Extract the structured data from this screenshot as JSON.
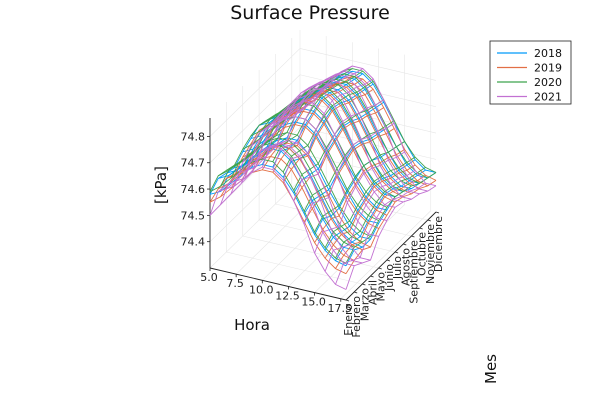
{
  "chart_data": {
    "type": "line",
    "title": "Surface Pressure",
    "xlabel": "Hora",
    "ylabel": "Mes",
    "zlabel": "[kPa]",
    "x_ticks": [
      "5.0",
      "7.5",
      "10.0",
      "12.5",
      "15.0",
      "17.5"
    ],
    "xlim": [
      5,
      18
    ],
    "y_categories": [
      "Enero",
      "Febrero",
      "Marzo",
      "Abril",
      "Mayo",
      "Junio",
      "Julio",
      "Agosto",
      "Septiembre",
      "Octubre",
      "Noviembre",
      "Diciembre"
    ],
    "z_ticks": [
      "74.4",
      "74.5",
      "74.6",
      "74.7",
      "74.8"
    ],
    "zlim": [
      74.3,
      74.87
    ],
    "grid": true,
    "legend_position": "top-right",
    "hours": [
      5,
      6,
      7,
      8,
      9,
      10,
      11,
      12,
      13,
      14,
      15,
      16,
      17,
      18
    ],
    "series": [
      {
        "name": "2018",
        "color": "#009AFA",
        "values": [
          [
            74.58,
            74.6,
            74.64,
            74.68,
            74.72,
            74.74,
            74.74,
            74.71,
            74.66,
            74.59,
            74.52,
            74.47,
            74.44,
            74.43
          ],
          [
            74.61,
            74.63,
            74.67,
            74.71,
            74.75,
            74.77,
            74.77,
            74.74,
            74.68,
            74.61,
            74.55,
            74.49,
            74.46,
            74.46
          ],
          [
            74.6,
            74.62,
            74.66,
            74.7,
            74.74,
            74.76,
            74.75,
            74.72,
            74.67,
            74.6,
            74.53,
            74.48,
            74.45,
            74.44
          ],
          [
            74.59,
            74.61,
            74.65,
            74.69,
            74.73,
            74.75,
            74.75,
            74.71,
            74.66,
            74.59,
            74.53,
            74.47,
            74.44,
            74.44
          ],
          [
            74.62,
            74.64,
            74.68,
            74.72,
            74.76,
            74.78,
            74.78,
            74.75,
            74.69,
            74.62,
            74.56,
            74.5,
            74.47,
            74.47
          ],
          [
            74.64,
            74.66,
            74.7,
            74.74,
            74.78,
            74.8,
            74.8,
            74.77,
            74.71,
            74.64,
            74.58,
            74.52,
            74.49,
            74.49
          ],
          [
            74.66,
            74.68,
            74.72,
            74.76,
            74.8,
            74.82,
            74.82,
            74.79,
            74.73,
            74.66,
            74.6,
            74.54,
            74.51,
            74.51
          ],
          [
            74.65,
            74.67,
            74.71,
            74.75,
            74.79,
            74.81,
            74.81,
            74.78,
            74.72,
            74.65,
            74.59,
            74.53,
            74.5,
            74.5
          ],
          [
            74.63,
            74.65,
            74.69,
            74.73,
            74.77,
            74.79,
            74.79,
            74.76,
            74.7,
            74.63,
            74.57,
            74.51,
            74.48,
            74.48
          ],
          [
            74.62,
            74.64,
            74.68,
            74.72,
            74.76,
            74.78,
            74.78,
            74.75,
            74.69,
            74.62,
            74.56,
            74.5,
            74.47,
            74.47
          ],
          [
            74.61,
            74.63,
            74.67,
            74.71,
            74.75,
            74.77,
            74.77,
            74.74,
            74.68,
            74.61,
            74.55,
            74.49,
            74.46,
            74.46
          ],
          [
            74.6,
            74.62,
            74.66,
            74.7,
            74.74,
            74.76,
            74.76,
            74.73,
            74.67,
            74.6,
            74.54,
            74.48,
            74.45,
            74.45
          ]
        ]
      },
      {
        "name": "2019",
        "color": "#E26F46",
        "values": [
          [
            74.55,
            74.58,
            74.62,
            74.66,
            74.7,
            74.72,
            74.72,
            74.69,
            74.63,
            74.56,
            74.49,
            74.44,
            74.41,
            74.4
          ],
          [
            74.57,
            74.6,
            74.64,
            74.68,
            74.72,
            74.74,
            74.74,
            74.71,
            74.65,
            74.58,
            74.51,
            74.46,
            74.43,
            74.42
          ],
          [
            74.58,
            74.61,
            74.65,
            74.69,
            74.73,
            74.75,
            74.75,
            74.72,
            74.66,
            74.59,
            74.52,
            74.47,
            74.44,
            74.43
          ],
          [
            74.56,
            74.59,
            74.63,
            74.67,
            74.71,
            74.73,
            74.73,
            74.7,
            74.64,
            74.57,
            74.5,
            74.45,
            74.42,
            74.41
          ],
          [
            74.6,
            74.63,
            74.67,
            74.71,
            74.75,
            74.77,
            74.77,
            74.74,
            74.68,
            74.61,
            74.54,
            74.49,
            74.46,
            74.45
          ],
          [
            74.62,
            74.65,
            74.69,
            74.73,
            74.77,
            74.79,
            74.79,
            74.76,
            74.7,
            74.63,
            74.56,
            74.51,
            74.48,
            74.47
          ],
          [
            74.64,
            74.67,
            74.71,
            74.75,
            74.79,
            74.81,
            74.81,
            74.78,
            74.72,
            74.65,
            74.58,
            74.53,
            74.5,
            74.49
          ],
          [
            74.63,
            74.66,
            74.7,
            74.74,
            74.78,
            74.8,
            74.8,
            74.77,
            74.71,
            74.64,
            74.57,
            74.52,
            74.49,
            74.48
          ],
          [
            74.61,
            74.64,
            74.68,
            74.72,
            74.76,
            74.78,
            74.78,
            74.75,
            74.69,
            74.62,
            74.55,
            74.5,
            74.47,
            74.46
          ],
          [
            74.6,
            74.63,
            74.67,
            74.71,
            74.75,
            74.77,
            74.77,
            74.74,
            74.68,
            74.61,
            74.54,
            74.49,
            74.46,
            74.45
          ],
          [
            74.58,
            74.61,
            74.65,
            74.69,
            74.73,
            74.75,
            74.75,
            74.72,
            74.66,
            74.59,
            74.52,
            74.47,
            74.44,
            74.43
          ],
          [
            74.57,
            74.6,
            74.64,
            74.68,
            74.72,
            74.74,
            74.74,
            74.71,
            74.65,
            74.58,
            74.51,
            74.46,
            74.43,
            74.42
          ]
        ]
      },
      {
        "name": "2020",
        "color": "#3EA44E",
        "values": [
          [
            74.59,
            74.62,
            74.66,
            74.7,
            74.74,
            74.76,
            74.76,
            74.73,
            74.67,
            74.6,
            74.53,
            74.48,
            74.45,
            74.44
          ],
          [
            74.62,
            74.65,
            74.69,
            74.73,
            74.77,
            74.79,
            74.79,
            74.76,
            74.7,
            74.63,
            74.56,
            74.51,
            74.48,
            74.47
          ],
          [
            74.61,
            74.64,
            74.68,
            74.72,
            74.76,
            74.78,
            74.78,
            74.75,
            74.69,
            74.62,
            74.55,
            74.5,
            74.47,
            74.46
          ],
          [
            74.6,
            74.63,
            74.67,
            74.71,
            74.75,
            74.77,
            74.77,
            74.74,
            74.68,
            74.61,
            74.54,
            74.49,
            74.46,
            74.45
          ],
          [
            74.63,
            74.66,
            74.7,
            74.74,
            74.78,
            74.8,
            74.8,
            74.77,
            74.71,
            74.64,
            74.57,
            74.52,
            74.49,
            74.48
          ],
          [
            74.65,
            74.68,
            74.72,
            74.76,
            74.8,
            74.82,
            74.82,
            74.79,
            74.73,
            74.66,
            74.59,
            74.54,
            74.51,
            74.5
          ],
          [
            74.66,
            74.69,
            74.73,
            74.77,
            74.81,
            74.83,
            74.83,
            74.8,
            74.74,
            74.67,
            74.6,
            74.55,
            74.52,
            74.51
          ],
          [
            74.65,
            74.68,
            74.72,
            74.76,
            74.8,
            74.82,
            74.82,
            74.79,
            74.73,
            74.66,
            74.59,
            74.54,
            74.51,
            74.5
          ],
          [
            74.64,
            74.67,
            74.71,
            74.75,
            74.79,
            74.81,
            74.81,
            74.78,
            74.72,
            74.65,
            74.58,
            74.53,
            74.5,
            74.49
          ],
          [
            74.62,
            74.65,
            74.69,
            74.73,
            74.77,
            74.79,
            74.79,
            74.76,
            74.7,
            74.63,
            74.56,
            74.51,
            74.48,
            74.47
          ],
          [
            74.61,
            74.64,
            74.68,
            74.72,
            74.76,
            74.78,
            74.78,
            74.75,
            74.69,
            74.62,
            74.55,
            74.5,
            74.47,
            74.46
          ],
          [
            74.6,
            74.63,
            74.67,
            74.71,
            74.75,
            74.77,
            74.77,
            74.74,
            74.68,
            74.61,
            74.54,
            74.49,
            74.46,
            74.45
          ]
        ]
      },
      {
        "name": "2021",
        "color": "#C271D2",
        "values": [
          [
            74.5,
            74.55,
            74.6,
            74.65,
            74.7,
            74.73,
            74.73,
            74.7,
            74.63,
            74.55,
            74.45,
            74.39,
            74.35,
            74.34
          ],
          [
            74.56,
            74.6,
            74.65,
            74.7,
            74.75,
            74.78,
            74.78,
            74.75,
            74.68,
            74.6,
            74.5,
            74.44,
            74.4,
            74.4
          ],
          [
            74.54,
            74.58,
            74.63,
            74.68,
            74.73,
            74.76,
            74.76,
            74.73,
            74.66,
            74.58,
            74.48,
            74.42,
            74.38,
            74.38
          ],
          [
            74.52,
            74.56,
            74.61,
            74.66,
            74.71,
            74.74,
            74.74,
            74.71,
            74.64,
            74.56,
            74.46,
            74.4,
            74.36,
            74.36
          ],
          [
            74.58,
            74.62,
            74.67,
            74.72,
            74.77,
            74.8,
            74.8,
            74.77,
            74.7,
            74.62,
            74.52,
            74.46,
            74.42,
            74.42
          ],
          [
            74.61,
            74.65,
            74.7,
            74.75,
            74.8,
            74.83,
            74.83,
            74.8,
            74.73,
            74.65,
            74.55,
            74.49,
            74.45,
            74.45
          ],
          [
            74.63,
            74.67,
            74.72,
            74.77,
            74.82,
            74.85,
            74.85,
            74.82,
            74.75,
            74.67,
            74.57,
            74.51,
            74.47,
            74.47
          ],
          [
            74.62,
            74.66,
            74.71,
            74.76,
            74.81,
            74.84,
            74.84,
            74.81,
            74.74,
            74.66,
            74.56,
            74.5,
            74.46,
            74.46
          ],
          [
            74.6,
            74.64,
            74.69,
            74.74,
            74.79,
            74.82,
            74.82,
            74.79,
            74.72,
            74.64,
            74.54,
            74.48,
            74.44,
            74.44
          ],
          [
            74.59,
            74.63,
            74.68,
            74.73,
            74.78,
            74.81,
            74.81,
            74.78,
            74.71,
            74.63,
            74.53,
            74.47,
            74.43,
            74.43
          ],
          [
            74.57,
            74.61,
            74.66,
            74.71,
            74.76,
            74.79,
            74.79,
            74.76,
            74.69,
            74.61,
            74.51,
            74.45,
            74.41,
            74.41
          ],
          [
            74.56,
            74.6,
            74.65,
            74.7,
            74.75,
            74.78,
            74.78,
            74.75,
            74.68,
            74.6,
            74.5,
            74.44,
            74.4,
            74.4
          ]
        ]
      }
    ]
  }
}
